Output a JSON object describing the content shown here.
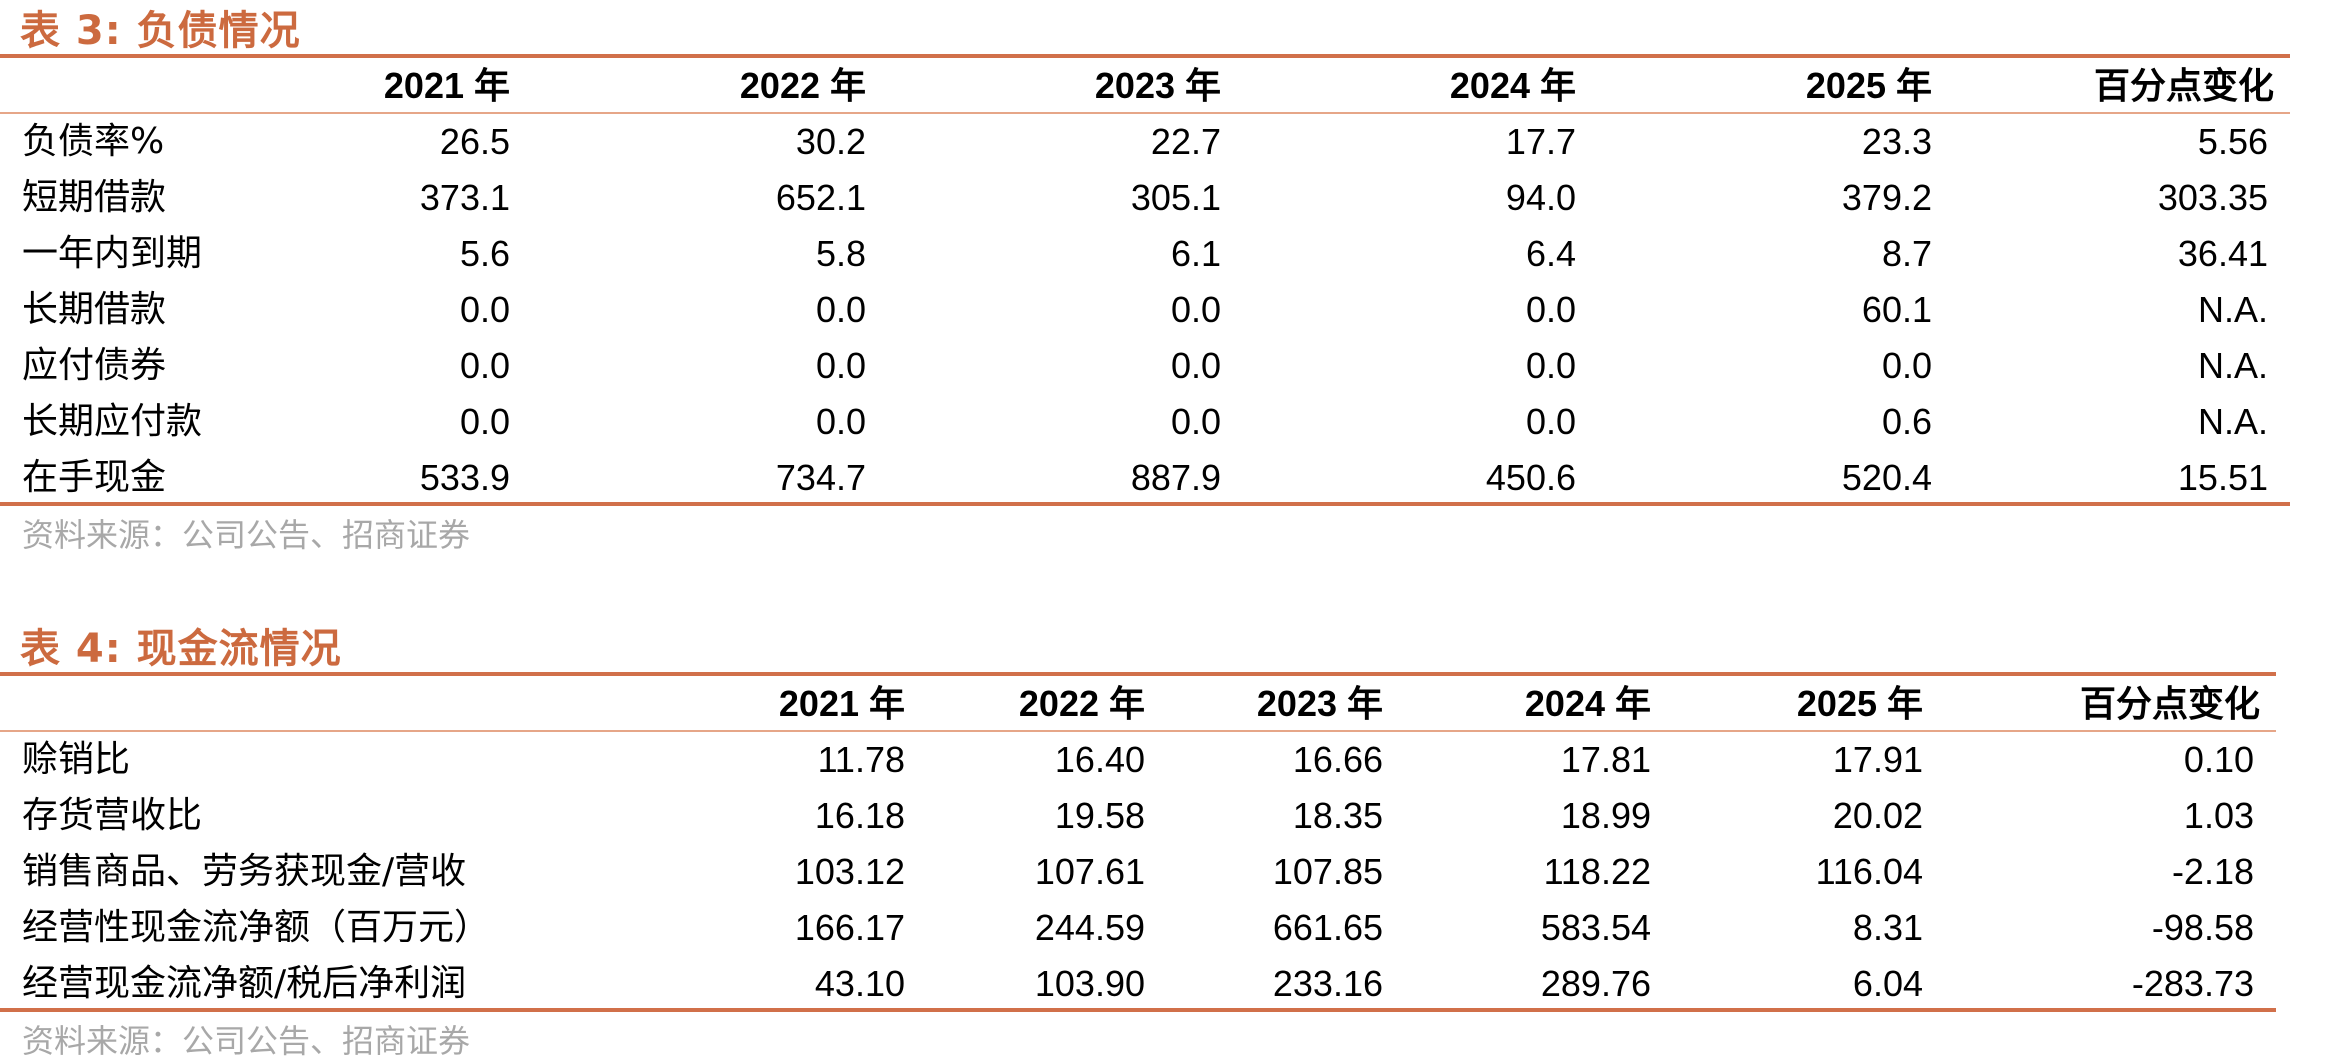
{
  "table3": {
    "title": "表 3:  负债情况",
    "headers": [
      "",
      "2021 年",
      "2022 年",
      "2023 年",
      "2024 年",
      "2025 年",
      "百分点变化"
    ],
    "rows": [
      [
        "负债率%",
        "26.5",
        "30.2",
        "22.7",
        "17.7",
        "23.3",
        "5.56"
      ],
      [
        "短期借款",
        "373.1",
        "652.1",
        "305.1",
        "94.0",
        "379.2",
        "303.35"
      ],
      [
        "一年内到期",
        "5.6",
        "5.8",
        "6.1",
        "6.4",
        "8.7",
        "36.41"
      ],
      [
        "长期借款",
        "0.0",
        "0.0",
        "0.0",
        "0.0",
        "60.1",
        "N.A."
      ],
      [
        "应付债券",
        "0.0",
        "0.0",
        "0.0",
        "0.0",
        "0.0",
        "N.A."
      ],
      [
        "长期应付款",
        "0.0",
        "0.0",
        "0.0",
        "0.0",
        "0.6",
        "N.A."
      ],
      [
        "在手现金",
        "533.9",
        "734.7",
        "887.9",
        "450.6",
        "520.4",
        "15.51"
      ]
    ],
    "source": "资料来源：公司公告、招商证券"
  },
  "table4": {
    "title": "表 4:  现金流情况",
    "headers": [
      "",
      "2021 年",
      "2022 年",
      "2023 年",
      "2024 年",
      "2025 年",
      "百分点变化"
    ],
    "rows": [
      [
        "赊销比",
        "11.78",
        "16.40",
        "16.66",
        "17.81",
        "17.91",
        "0.10"
      ],
      [
        "存货营收比",
        "16.18",
        "19.58",
        "18.35",
        "18.99",
        "20.02",
        "1.03"
      ],
      [
        "销售商品、劳务获现金/营收",
        "103.12",
        "107.61",
        "107.85",
        "118.22",
        "116.04",
        "-2.18"
      ],
      [
        "经营性现金流净额（百万元）",
        "166.17",
        "244.59",
        "661.65",
        "583.54",
        "8.31",
        "-98.58"
      ],
      [
        "经营现金流净额/税后净利润",
        "43.10",
        "103.90",
        "233.16",
        "289.76",
        "6.04",
        "-283.73"
      ]
    ],
    "source": "资料来源：公司公告、招商证券"
  }
}
